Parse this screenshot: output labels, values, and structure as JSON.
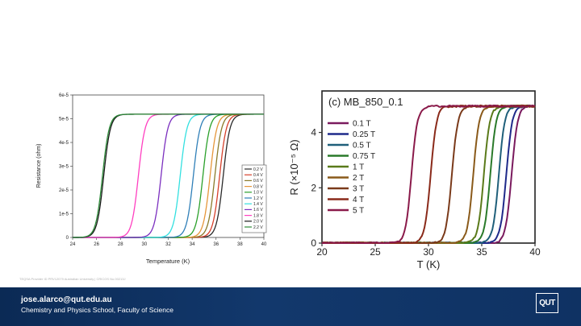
{
  "footer": {
    "email": "jose.alarco@qut.edu.au",
    "school": "Chemistry and Physics School, Faculty of Science",
    "logo_text": "QUT"
  },
  "footnote": "TEQSA Provider ID PRV12079 Australian University | CRICOS No.00213J",
  "colors": {
    "footer_bg": "#12386c"
  },
  "chart_data": [
    {
      "type": "line",
      "title": "",
      "xlabel": "Temperature (K)",
      "ylabel": "Resistance (ohm)",
      "xlim": [
        24,
        40
      ],
      "ylim": [
        0,
        6e-05
      ],
      "xticks": [
        "24",
        "26",
        "28",
        "30",
        "32",
        "34",
        "36",
        "38",
        "40"
      ],
      "yticks": [
        "0",
        "1e-5",
        "2e-5",
        "3e-5",
        "4e-5",
        "5e-5",
        "6e-5"
      ],
      "legend_placement": "right",
      "plateau": 5.19e-05,
      "series": [
        {
          "name": "0.2 V",
          "color": "#2a2a2a",
          "tc": 38.0
        },
        {
          "name": "0.4 V",
          "color": "#d6402b",
          "tc": 37.7
        },
        {
          "name": "0.6 V",
          "color": "#8a7a2a",
          "tc": 37.3
        },
        {
          "name": "0.8 V",
          "color": "#e5963a",
          "tc": 36.9
        },
        {
          "name": "1.0 V",
          "color": "#2aa02a",
          "tc": 36.3
        },
        {
          "name": "1.2 V",
          "color": "#2f7fb8",
          "tc": 35.5
        },
        {
          "name": "1.4 V",
          "color": "#33e0e0",
          "tc": 34.4
        },
        {
          "name": "1.6 V",
          "color": "#7b2fbf",
          "tc": 32.8
        },
        {
          "name": "1.8 V",
          "color": "#ff3fc0",
          "tc": 30.9
        },
        {
          "name": "2.0 V",
          "color": "#1a1a1a",
          "tc": 28.0
        },
        {
          "name": "2.2 V",
          "color": "#2e8b3a",
          "tc": 27.9
        }
      ]
    },
    {
      "type": "line",
      "title": "(c) MB_850_0.1",
      "xlabel": "T (K)",
      "ylabel": "R (×10⁻⁵ Ω)",
      "xlim": [
        20,
        40
      ],
      "ylim": [
        0,
        5.5
      ],
      "xticks": [
        "20",
        "25",
        "30",
        "35",
        "40"
      ],
      "yticks": [
        "0",
        "2",
        "4"
      ],
      "legend_placement": "left",
      "plateau": 4.95,
      "series": [
        {
          "name": "0.1 T",
          "color": "#7a1a5e",
          "tc": 39.0
        },
        {
          "name": "0.25 T",
          "color": "#1f2a8a",
          "tc": 38.5
        },
        {
          "name": "0.5 T",
          "color": "#1f5f7a",
          "tc": 37.8
        },
        {
          "name": "0.75 T",
          "color": "#2a7a2a",
          "tc": 37.0
        },
        {
          "name": "1 T",
          "color": "#5a7a1a",
          "tc": 36.4
        },
        {
          "name": "2 T",
          "color": "#8a5a1a",
          "tc": 35.4
        },
        {
          "name": "3 T",
          "color": "#7a3a1a",
          "tc": 33.4
        },
        {
          "name": "4 T",
          "color": "#8a2a1a",
          "tc": 31.4
        },
        {
          "name": "5 T",
          "color": "#8a1a4a",
          "tc": 29.6
        }
      ]
    }
  ]
}
